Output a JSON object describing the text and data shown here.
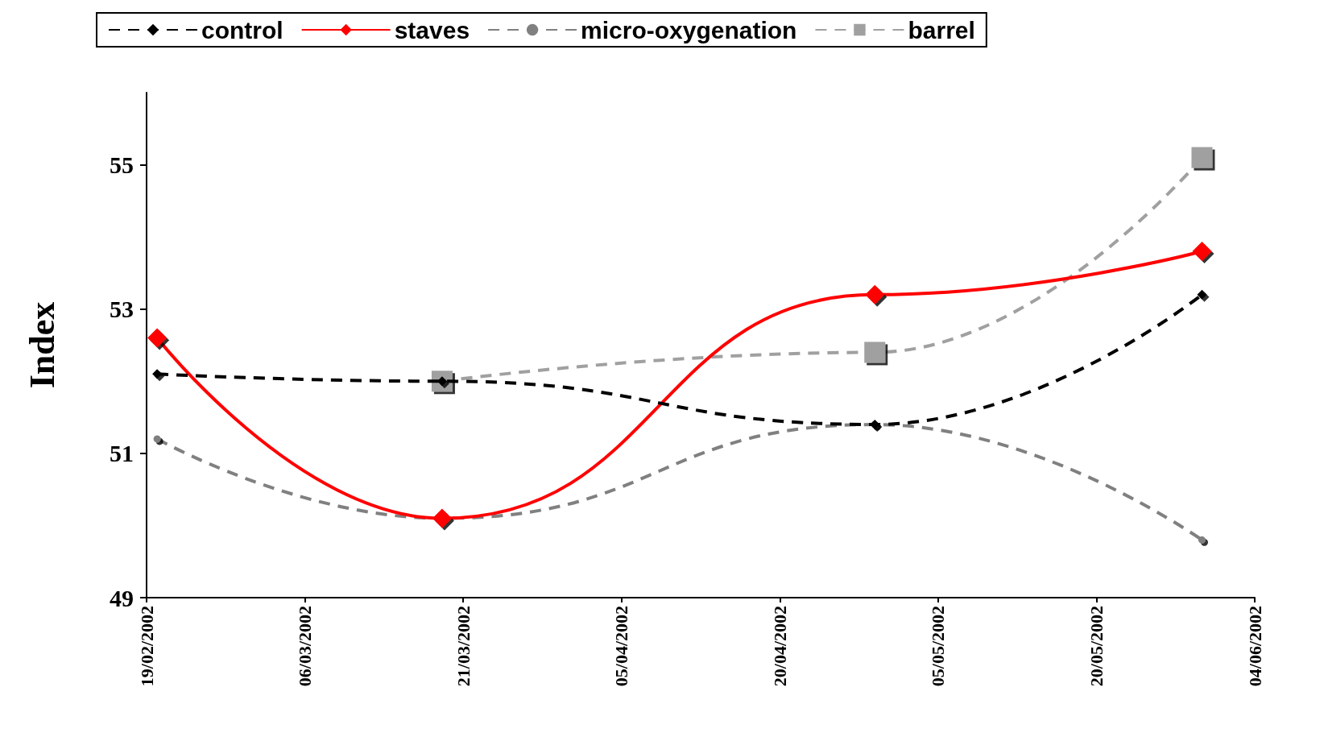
{
  "chart_data": {
    "type": "line",
    "ylabel": "Index",
    "x": [
      "2002-02-20",
      "2002-03-19",
      "2002-04-29",
      "2002-05-30"
    ],
    "xlim": [
      "2002-02-19",
      "2002-06-04"
    ],
    "xticks": [
      {
        "value": "2002-02-19",
        "label": "19/02/2002"
      },
      {
        "value": "2002-03-06",
        "label": "06/03/2002"
      },
      {
        "value": "2002-03-21",
        "label": "21/03/2002"
      },
      {
        "value": "2002-04-05",
        "label": "05/04/2002"
      },
      {
        "value": "2002-04-20",
        "label": "20/04/2002"
      },
      {
        "value": "2002-05-05",
        "label": "05/05/2002"
      },
      {
        "value": "2002-05-20",
        "label": "20/05/2002"
      },
      {
        "value": "2002-06-04",
        "label": "04/06/2002"
      }
    ],
    "ylim": [
      49,
      56
    ],
    "yticks": [
      49,
      51,
      53,
      55
    ],
    "legend": "top",
    "grid": false,
    "series": [
      {
        "name": "control",
        "color": "#000000",
        "marker": "diamond",
        "line_style": "dashed",
        "values": [
          52.1,
          52.0,
          51.4,
          53.2
        ]
      },
      {
        "name": "staves",
        "color": "#ff0000",
        "marker": "diamond",
        "line_style": "solid",
        "values": [
          52.6,
          50.1,
          53.2,
          53.8
        ]
      },
      {
        "name": "micro-oxygenation",
        "color": "#808080",
        "marker": "circle",
        "line_style": "dashed",
        "values": [
          51.2,
          50.1,
          51.4,
          49.8
        ]
      },
      {
        "name": "barrel",
        "color": "#a0a0a0",
        "marker": "square",
        "line_style": "dashed",
        "values": [
          null,
          52.0,
          52.4,
          55.1
        ]
      }
    ]
  }
}
